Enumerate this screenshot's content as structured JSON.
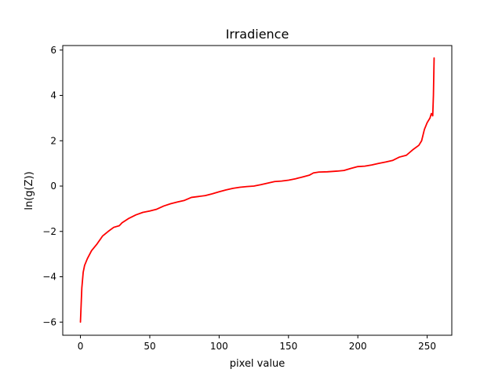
{
  "chart_data": {
    "type": "line",
    "title": "Irradience",
    "xlabel": "pixel value",
    "ylabel": "ln(g(Z))",
    "xlim": [
      -12.75,
      267.75
    ],
    "ylim": [
      -6.58,
      6.2
    ],
    "xticks": [
      0,
      50,
      100,
      150,
      200,
      250
    ],
    "xtick_labels": [
      "0",
      "50",
      "100",
      "150",
      "200",
      "250"
    ],
    "yticks": [
      -6,
      -4,
      -2,
      0,
      2,
      4,
      6
    ],
    "ytick_labels": [
      "−6",
      "−4",
      "−2",
      "0",
      "2",
      "4",
      "6"
    ],
    "grid": false,
    "legend": "none",
    "series": [
      {
        "name": "ln(g(Z))",
        "color": "#ff0000",
        "x": [
          0,
          1,
          2,
          3,
          5,
          8,
          12,
          16,
          20,
          24,
          28,
          30,
          35,
          40,
          45,
          50,
          55,
          60,
          65,
          70,
          75,
          80,
          85,
          90,
          95,
          100,
          105,
          110,
          115,
          120,
          125,
          130,
          135,
          140,
          145,
          150,
          155,
          160,
          165,
          168,
          172,
          178,
          185,
          190,
          195,
          200,
          205,
          210,
          215,
          220,
          225,
          230,
          235,
          240,
          244,
          246,
          248,
          250,
          252,
          253,
          254,
          254.5,
          255
        ],
        "values": [
          -6.0,
          -4.5,
          -3.8,
          -3.5,
          -3.2,
          -2.85,
          -2.55,
          -2.2,
          -2.0,
          -1.82,
          -1.75,
          -1.62,
          -1.42,
          -1.27,
          -1.16,
          -1.1,
          -1.02,
          -0.88,
          -0.78,
          -0.7,
          -0.63,
          -0.5,
          -0.46,
          -0.42,
          -0.34,
          -0.25,
          -0.17,
          -0.1,
          -0.05,
          -0.02,
          0.0,
          0.06,
          0.13,
          0.2,
          0.22,
          0.26,
          0.32,
          0.4,
          0.48,
          0.58,
          0.62,
          0.63,
          0.66,
          0.69,
          0.78,
          0.86,
          0.88,
          0.93,
          1.0,
          1.06,
          1.13,
          1.28,
          1.36,
          1.62,
          1.8,
          2.0,
          2.5,
          2.8,
          3.0,
          3.2,
          3.1,
          4.0,
          5.65
        ]
      }
    ]
  }
}
